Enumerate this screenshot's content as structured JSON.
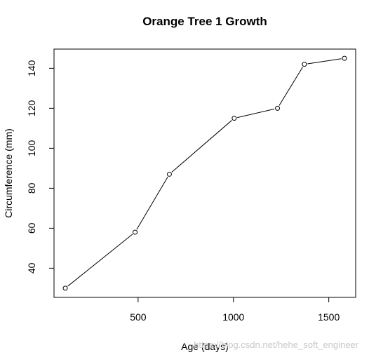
{
  "chart_data": {
    "type": "line",
    "title": "Orange Tree 1 Growth",
    "xlabel": "Age (days)",
    "ylabel": "Circumference (mm)",
    "x": [
      118,
      484,
      664,
      1004,
      1231,
      1372,
      1582
    ],
    "y": [
      30,
      58,
      87,
      115,
      120,
      142,
      145
    ],
    "xlim": [
      59,
      1641
    ],
    "ylim": [
      25.4,
      149.6
    ],
    "xticks": [
      500,
      1000,
      1500
    ],
    "yticks": [
      40,
      60,
      80,
      100,
      120,
      140
    ],
    "markers": "open-circle",
    "grid": false
  },
  "watermark": "https://blog.csdn.net/hehe_soft_engineer"
}
